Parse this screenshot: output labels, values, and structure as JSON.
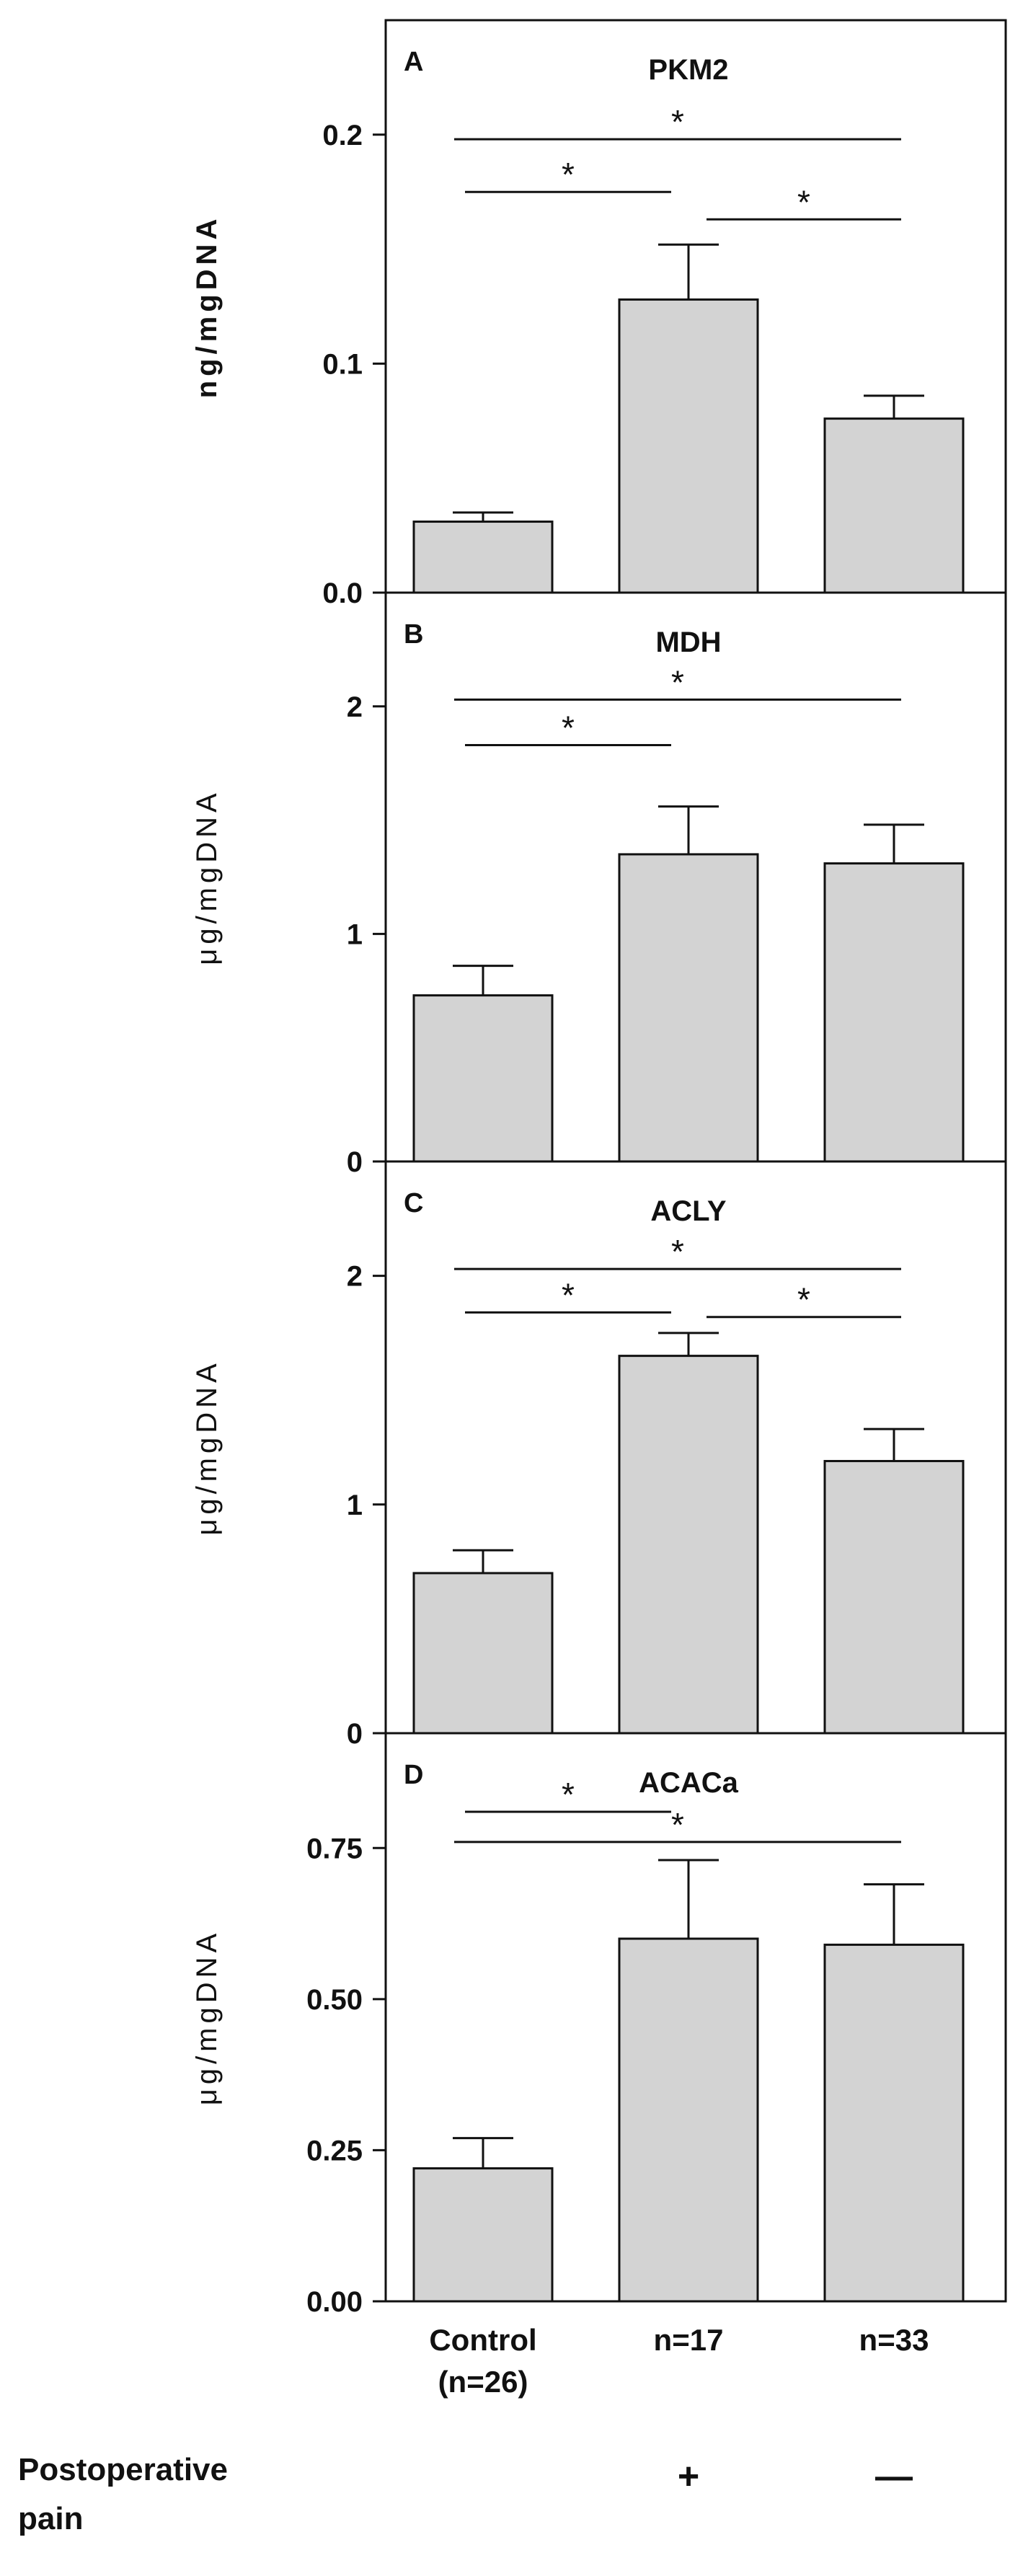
{
  "colors": {
    "bar_fill": "#d3d3d3",
    "stroke": "#111111",
    "background": "#ffffff"
  },
  "categories": [
    "Control",
    "n=17",
    "n=33"
  ],
  "category_sublabels": [
    "(n=26)",
    "",
    ""
  ],
  "footer": {
    "label_line1": "Postoperative",
    "label_line2": "pain",
    "signs": [
      "",
      "+",
      "—"
    ]
  },
  "chart_data": [
    {
      "type": "bar",
      "panel": "A",
      "title": "PKM2",
      "ylabel": "ng/mgDNA",
      "categories": [
        "Control",
        "n=17",
        "n=33"
      ],
      "values": [
        0.031,
        0.128,
        0.076
      ],
      "errors": [
        0.004,
        0.024,
        0.01
      ],
      "ylim": [
        0,
        0.25
      ],
      "yticks": [
        0.0,
        0.1,
        0.2
      ],
      "ytick_labels": [
        "0.0",
        "0.1",
        "0.2"
      ],
      "significance": [
        {
          "from": 0,
          "to": 2,
          "y": 0.198,
          "label": "*"
        },
        {
          "from": 0,
          "to": 1,
          "y": 0.175,
          "label": "*"
        },
        {
          "from": 1,
          "to": 2,
          "y": 0.163,
          "label": "*"
        }
      ]
    },
    {
      "type": "bar",
      "panel": "B",
      "title": "MDH",
      "ylabel": "μg/mgDNA",
      "categories": [
        "Control",
        "n=17",
        "n=33"
      ],
      "values": [
        0.73,
        1.35,
        1.31
      ],
      "errors": [
        0.13,
        0.21,
        0.17
      ],
      "ylim": [
        0,
        2.5
      ],
      "yticks": [
        0,
        1,
        2
      ],
      "ytick_labels": [
        "0",
        "1",
        "2"
      ],
      "significance": [
        {
          "from": 0,
          "to": 2,
          "y": 2.03,
          "label": "*"
        },
        {
          "from": 0,
          "to": 1,
          "y": 1.83,
          "label": "*"
        }
      ]
    },
    {
      "type": "bar",
      "panel": "C",
      "title": "ACLY",
      "ylabel": "μg/mgDNA",
      "categories": [
        "Control",
        "n=17",
        "n=33"
      ],
      "values": [
        0.7,
        1.65,
        1.19
      ],
      "errors": [
        0.1,
        0.1,
        0.14
      ],
      "ylim": [
        0,
        2.5
      ],
      "yticks": [
        0,
        1,
        2
      ],
      "ytick_labels": [
        "0",
        "1",
        "2"
      ],
      "significance": [
        {
          "from": 0,
          "to": 2,
          "y": 2.03,
          "label": "*"
        },
        {
          "from": 0,
          "to": 1,
          "y": 1.84,
          "label": "*"
        },
        {
          "from": 1,
          "to": 2,
          "y": 1.82,
          "label": "*"
        }
      ]
    },
    {
      "type": "bar",
      "panel": "D",
      "title": "ACACa",
      "ylabel": "μg/mgDNA",
      "categories": [
        "Control",
        "n=17",
        "n=33"
      ],
      "values": [
        0.22,
        0.6,
        0.59
      ],
      "errors": [
        0.05,
        0.13,
        0.1
      ],
      "ylim": [
        0,
        0.94
      ],
      "yticks": [
        0.0,
        0.25,
        0.5,
        0.75
      ],
      "ytick_labels": [
        "0.00",
        "0.25",
        "0.50",
        "0.75"
      ],
      "significance": [
        {
          "from": 0,
          "to": 1,
          "y": 0.81,
          "label": "*"
        },
        {
          "from": 0,
          "to": 2,
          "y": 0.76,
          "label": "*"
        }
      ]
    }
  ]
}
